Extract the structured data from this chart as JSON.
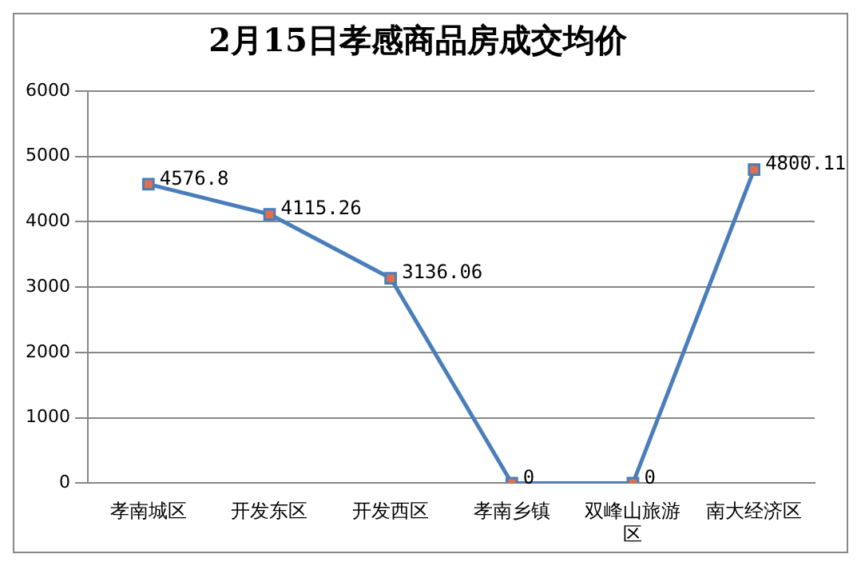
{
  "chart_data": {
    "type": "line",
    "title": "2月15日孝感商品房成交均价",
    "categories": [
      "孝南城区",
      "开发东区",
      "开发西区",
      "孝南乡镇",
      "双峰山旅游区",
      "南大经济区"
    ],
    "series": [
      {
        "color": "#4a7ebb",
        "values": [
          4576.8,
          4115.26,
          3136.06,
          0,
          0,
          4800.11
        ]
      }
    ],
    "ylim": [
      0,
      6000
    ],
    "yticks": [
      0,
      1000,
      2000,
      3000,
      4000,
      5000,
      6000
    ],
    "grid": "y",
    "legend": false,
    "marker": "square",
    "line_style": "solid",
    "data_labels": true
  }
}
